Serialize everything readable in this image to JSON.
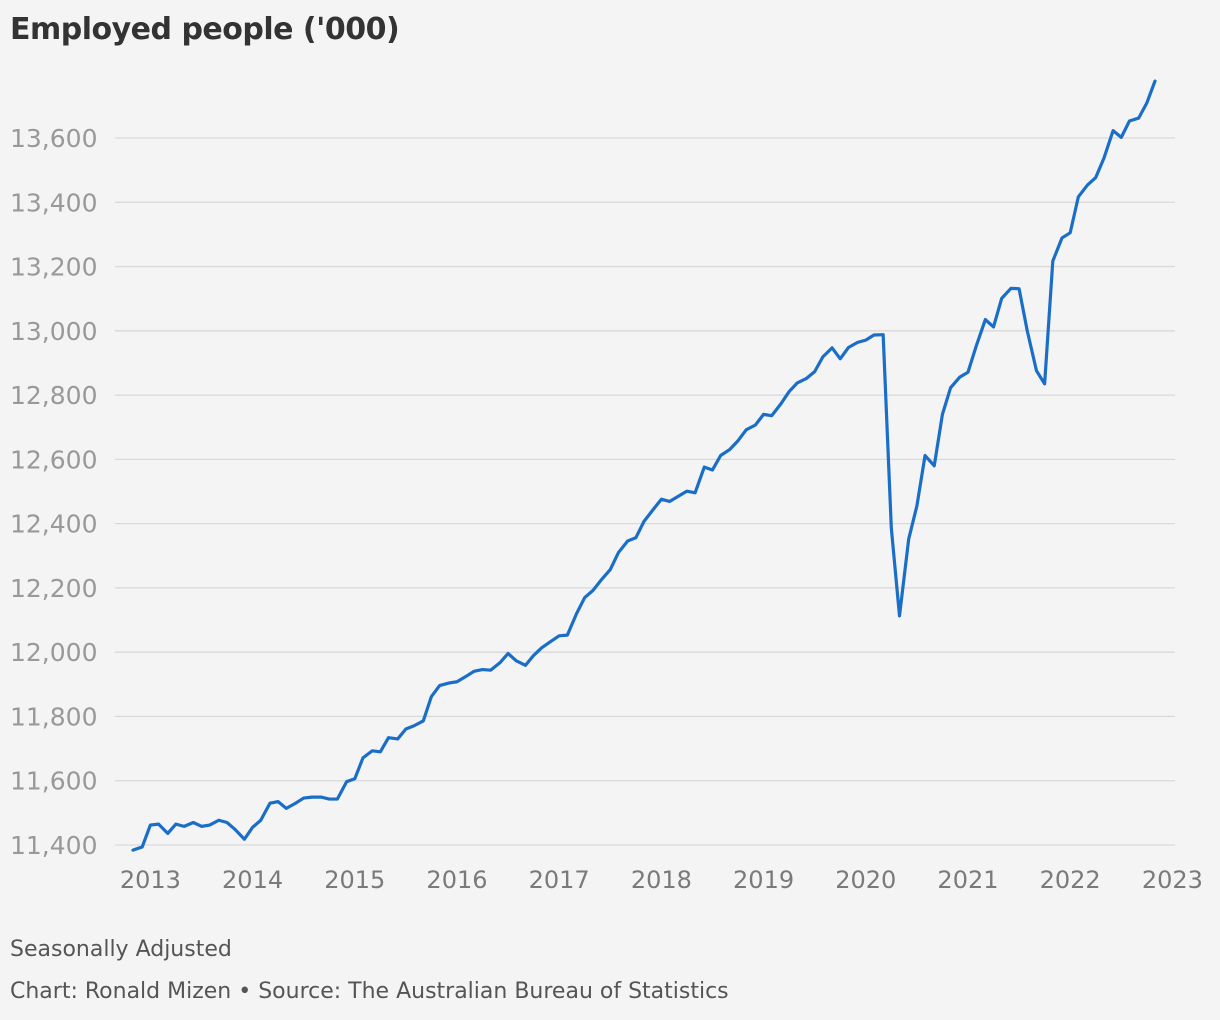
{
  "chart_data": {
    "type": "line",
    "title": "Employed people ('000)",
    "note": "Seasonally Adjusted",
    "credit": "Chart: Ronald Mizen • Source: The Australian Bureau of Statistics",
    "line_color": "#1a6ec8",
    "grid": true,
    "xlim": [
      2012.83,
      2023.0
    ],
    "ylim": [
      11380,
      13800
    ],
    "x_ticks": [
      {
        "value": 2013,
        "label": "2013"
      },
      {
        "value": 2014,
        "label": "2014"
      },
      {
        "value": 2015,
        "label": "2015"
      },
      {
        "value": 2016,
        "label": "2016"
      },
      {
        "value": 2017,
        "label": "2017"
      },
      {
        "value": 2018,
        "label": "2018"
      },
      {
        "value": 2019,
        "label": "2019"
      },
      {
        "value": 2020,
        "label": "2020"
      },
      {
        "value": 2021,
        "label": "2021"
      },
      {
        "value": 2022,
        "label": "2022"
      },
      {
        "value": 2023,
        "label": "2023"
      }
    ],
    "y_ticks": [
      {
        "value": 11400,
        "label": "11,400"
      },
      {
        "value": 11600,
        "label": "11,600"
      },
      {
        "value": 11800,
        "label": "11,800"
      },
      {
        "value": 12000,
        "label": "12,000"
      },
      {
        "value": 12200,
        "label": "12,200"
      },
      {
        "value": 12400,
        "label": "12,400"
      },
      {
        "value": 12600,
        "label": "12,600"
      },
      {
        "value": 12800,
        "label": "12,800"
      },
      {
        "value": 13000,
        "label": "13,000"
      },
      {
        "value": 13200,
        "label": "13,200"
      },
      {
        "value": 13400,
        "label": "13,400"
      },
      {
        "value": 13600,
        "label": "13,600"
      }
    ],
    "series": [
      {
        "x": [
          2012.83,
          2012.92,
          2013.0,
          2013.08,
          2013.17,
          2013.25,
          2013.33,
          2013.42,
          2013.5,
          2013.58,
          2013.67,
          2013.75,
          2013.83,
          2013.92,
          2014.0,
          2014.08,
          2014.17,
          2014.25,
          2014.33,
          2014.42,
          2014.5,
          2014.58,
          2014.67,
          2014.75,
          2014.83,
          2014.92,
          2015.0,
          2015.08,
          2015.17,
          2015.25,
          2015.33,
          2015.42,
          2015.5,
          2015.58,
          2015.67,
          2015.75,
          2015.83,
          2015.92,
          2016.0,
          2016.08,
          2016.17,
          2016.25,
          2016.33,
          2016.42,
          2016.5,
          2016.58,
          2016.67,
          2016.75,
          2016.83,
          2016.92,
          2017.0,
          2017.08,
          2017.17,
          2017.25,
          2017.33,
          2017.42,
          2017.5,
          2017.58,
          2017.67,
          2017.75,
          2017.83,
          2017.92,
          2018.0,
          2018.08,
          2018.17,
          2018.25,
          2018.33,
          2018.42,
          2018.5,
          2018.58,
          2018.67,
          2018.75,
          2018.83,
          2018.92,
          2019.0,
          2019.08,
          2019.17,
          2019.25,
          2019.33,
          2019.42,
          2019.5,
          2019.58,
          2019.67,
          2019.75,
          2019.83,
          2019.92,
          2020.0,
          2020.08,
          2020.17,
          2020.25,
          2020.33,
          2020.42,
          2020.5,
          2020.58,
          2020.67,
          2020.75,
          2020.83,
          2020.92,
          2021.0,
          2021.08,
          2021.17,
          2021.25,
          2021.33,
          2021.42,
          2021.5,
          2021.58,
          2021.67,
          2021.75,
          2021.83,
          2021.92,
          2022.0,
          2022.08,
          2022.17,
          2022.25,
          2022.33,
          2022.42,
          2022.5,
          2022.58,
          2022.67,
          2022.75,
          2022.83
        ],
        "y": [
          11384,
          11394,
          11462,
          11465,
          11436,
          11465,
          11458,
          11470,
          11458,
          11462,
          11477,
          11470,
          11448,
          11418,
          11455,
          11477,
          11530,
          11535,
          11514,
          11530,
          11546,
          11549,
          11549,
          11543,
          11543,
          11597,
          11606,
          11671,
          11693,
          11690,
          11734,
          11730,
          11761,
          11771,
          11786,
          11862,
          11896,
          11904,
          11908,
          11923,
          11941,
          11946,
          11944,
          11967,
          11996,
          11973,
          11959,
          11990,
          12014,
          12034,
          12051,
          12053,
          12120,
          12170,
          12192,
          12228,
          12257,
          12310,
          12346,
          12356,
          12407,
          12444,
          12476,
          12469,
          12486,
          12501,
          12496,
          12576,
          12567,
          12612,
          12631,
          12658,
          12692,
          12707,
          12740,
          12736,
          12773,
          12811,
          12838,
          12852,
          12873,
          12919,
          12947,
          12913,
          12948,
          12964,
          12971,
          12987,
          12988,
          12386,
          12113,
          12352,
          12455,
          12612,
          12580,
          12740,
          12823,
          12856,
          12871,
          12952,
          13035,
          13012,
          13101,
          13132,
          13131,
          13000,
          12876,
          12835,
          13217,
          13289,
          13305,
          13417,
          13454,
          13477,
          13537,
          13623,
          13602,
          13653,
          13662,
          13709,
          13777
        ]
      }
    ]
  }
}
